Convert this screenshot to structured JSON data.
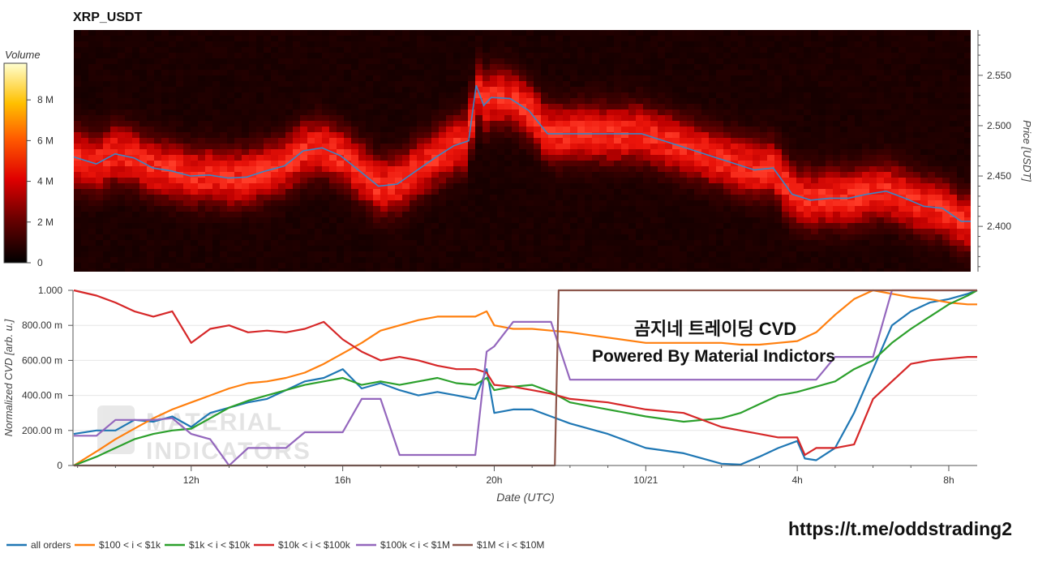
{
  "heatmap_title": "XRP_USDT",
  "colorbar": {
    "label": "Volume",
    "ticks": [
      "0",
      "2 M",
      "4 M",
      "6 M",
      "8 M"
    ],
    "tick_values": [
      0,
      2,
      4,
      6,
      8
    ],
    "max": 9.8
  },
  "price_axis": {
    "label": "Price [USDT]",
    "ticks": [
      "2.400",
      "2.450",
      "2.500",
      "2.550"
    ],
    "tick_values": [
      2.4,
      2.45,
      2.5,
      2.55
    ],
    "range": [
      2.355,
      2.595
    ]
  },
  "cvd_axis": {
    "label": "Normalized CVD [arb. u.]",
    "ticks": [
      "0",
      "200.00 m",
      "400.00 m",
      "600.00 m",
      "800.00 m",
      "1.000"
    ],
    "tick_values": [
      0,
      0.2,
      0.4,
      0.6,
      0.8,
      1.0
    ]
  },
  "x_axis": {
    "label": "Date (UTC)",
    "ticks": [
      "12h",
      "16h",
      "20h",
      "10/21",
      "4h",
      "8h"
    ],
    "tick_hours": [
      12,
      16,
      20,
      24,
      28,
      32
    ],
    "range_hours": [
      8.9,
      32.75
    ]
  },
  "overlay": {
    "line1": "곰지네 트레이딩 CVD",
    "line2": "Powered By Material Indictors"
  },
  "watermark": {
    "line1": "MATERIAL",
    "line2": "INDICATORS"
  },
  "footer_link": "https://t.me/oddstrading2",
  "legend": [
    {
      "label": "all orders",
      "color": "#1f77b4"
    },
    {
      "label": "$100 < i < $1k",
      "color": "#ff7f0e"
    },
    {
      "label": "$1k < i < $10k",
      "color": "#2ca02c"
    },
    {
      "label": "$10k < i < $100k",
      "color": "#d62728"
    },
    {
      "label": "$100k < i < $1M",
      "color": "#9467bd"
    },
    {
      "label": "$1M < i < $10M",
      "color": "#8c564b"
    }
  ],
  "chart_data": [
    {
      "type": "heatmap",
      "title": "XRP_USDT",
      "x_unit": "hours UTC from 10/20 00:00",
      "ylabel": "Price [USDT]",
      "colorbar_label": "Volume",
      "price_line": {
        "x": [
          8.9,
          9.5,
          10.0,
          10.5,
          11.0,
          11.5,
          12.0,
          12.5,
          13.0,
          13.5,
          14.0,
          14.5,
          15.0,
          15.5,
          16.0,
          16.5,
          17.0,
          17.5,
          18.0,
          18.5,
          19.0,
          19.4,
          19.6,
          19.8,
          20.0,
          20.5,
          21.0,
          21.5,
          22.0,
          23.0,
          24.0,
          25.0,
          26.0,
          27.0,
          27.5,
          28.0,
          28.5,
          29.0,
          29.5,
          30.0,
          30.5,
          31.0,
          31.5,
          32.0,
          32.5,
          32.75
        ],
        "y": [
          2.469,
          2.462,
          2.472,
          2.468,
          2.458,
          2.455,
          2.45,
          2.451,
          2.448,
          2.449,
          2.455,
          2.46,
          2.475,
          2.478,
          2.47,
          2.455,
          2.44,
          2.442,
          2.455,
          2.468,
          2.48,
          2.485,
          2.54,
          2.52,
          2.528,
          2.527,
          2.515,
          2.492,
          2.492,
          2.492,
          2.492,
          2.48,
          2.468,
          2.456,
          2.458,
          2.432,
          2.426,
          2.428,
          2.428,
          2.432,
          2.435,
          2.428,
          2.42,
          2.418,
          2.405,
          2.405
        ]
      }
    },
    {
      "type": "line",
      "xlabel": "Date (UTC)",
      "ylabel": "Normalized CVD [arb. u.]",
      "x_unit": "hours UTC from 10/20 00:00",
      "ylim": [
        0,
        1.0
      ],
      "series": [
        {
          "name": "all orders",
          "color": "#1f77b4",
          "x": [
            8.9,
            9.5,
            10.0,
            10.5,
            11.0,
            11.5,
            12.0,
            12.5,
            13.0,
            13.5,
            14.0,
            14.5,
            15.0,
            15.5,
            16.0,
            16.5,
            17.0,
            17.5,
            18.0,
            18.5,
            19.0,
            19.5,
            19.8,
            20.0,
            20.5,
            21.0,
            21.5,
            22.0,
            23.0,
            24.0,
            25.0,
            26.0,
            26.5,
            27.0,
            27.5,
            28.0,
            28.2,
            28.5,
            29.0,
            29.5,
            30.0,
            30.5,
            31.0,
            31.5,
            32.0,
            32.5,
            32.75
          ],
          "y": [
            0.18,
            0.2,
            0.2,
            0.26,
            0.25,
            0.28,
            0.22,
            0.3,
            0.33,
            0.36,
            0.38,
            0.43,
            0.48,
            0.5,
            0.55,
            0.44,
            0.47,
            0.43,
            0.4,
            0.42,
            0.4,
            0.38,
            0.55,
            0.3,
            0.32,
            0.32,
            0.28,
            0.24,
            0.18,
            0.1,
            0.07,
            0.01,
            0.005,
            0.05,
            0.1,
            0.14,
            0.04,
            0.03,
            0.1,
            0.3,
            0.55,
            0.8,
            0.88,
            0.93,
            0.95,
            0.98,
            1.0
          ]
        },
        {
          "name": "$100 < i < $1k",
          "color": "#ff7f0e",
          "x": [
            8.9,
            9.5,
            10.0,
            10.5,
            11.0,
            11.5,
            12.0,
            12.5,
            13.0,
            13.5,
            14.0,
            14.5,
            15.0,
            15.5,
            16.0,
            16.5,
            17.0,
            17.5,
            18.0,
            18.5,
            19.0,
            19.5,
            19.8,
            20.0,
            20.5,
            21.0,
            21.5,
            22.0,
            23.0,
            24.0,
            25.0,
            26.0,
            26.5,
            27.0,
            27.5,
            28.0,
            28.5,
            29.0,
            29.5,
            30.0,
            30.5,
            31.0,
            31.5,
            32.0,
            32.5,
            32.75
          ],
          "y": [
            0.0,
            0.08,
            0.15,
            0.21,
            0.27,
            0.32,
            0.36,
            0.4,
            0.44,
            0.47,
            0.48,
            0.5,
            0.53,
            0.58,
            0.64,
            0.7,
            0.77,
            0.8,
            0.83,
            0.85,
            0.85,
            0.85,
            0.88,
            0.8,
            0.78,
            0.78,
            0.77,
            0.76,
            0.73,
            0.7,
            0.7,
            0.7,
            0.69,
            0.69,
            0.7,
            0.71,
            0.76,
            0.86,
            0.95,
            1.0,
            0.98,
            0.96,
            0.95,
            0.93,
            0.92,
            0.92
          ]
        },
        {
          "name": "$1k < i < $10k",
          "color": "#2ca02c",
          "x": [
            8.9,
            9.5,
            10.0,
            10.5,
            11.0,
            11.5,
            12.0,
            12.5,
            13.0,
            13.5,
            14.0,
            14.5,
            15.0,
            15.5,
            16.0,
            16.5,
            17.0,
            17.5,
            18.0,
            18.5,
            19.0,
            19.5,
            19.8,
            20.0,
            20.5,
            21.0,
            21.5,
            22.0,
            23.0,
            24.0,
            25.0,
            26.0,
            26.5,
            27.0,
            27.5,
            28.0,
            28.5,
            29.0,
            29.5,
            30.0,
            30.5,
            31.0,
            31.5,
            32.0,
            32.5,
            32.75
          ],
          "y": [
            0.0,
            0.05,
            0.1,
            0.15,
            0.18,
            0.2,
            0.21,
            0.27,
            0.33,
            0.37,
            0.4,
            0.43,
            0.46,
            0.48,
            0.5,
            0.46,
            0.48,
            0.46,
            0.48,
            0.5,
            0.47,
            0.46,
            0.5,
            0.43,
            0.45,
            0.46,
            0.42,
            0.36,
            0.32,
            0.28,
            0.25,
            0.27,
            0.3,
            0.35,
            0.4,
            0.42,
            0.45,
            0.48,
            0.55,
            0.6,
            0.7,
            0.78,
            0.85,
            0.92,
            0.97,
            1.0
          ]
        },
        {
          "name": "$10k < i < $100k",
          "color": "#d62728",
          "x": [
            8.9,
            9.5,
            10.0,
            10.5,
            11.0,
            11.5,
            12.0,
            12.5,
            13.0,
            13.5,
            14.0,
            14.5,
            15.0,
            15.5,
            16.0,
            16.5,
            17.0,
            17.5,
            18.0,
            18.5,
            19.0,
            19.5,
            19.8,
            20.0,
            20.5,
            21.0,
            21.5,
            22.0,
            23.0,
            24.0,
            25.0,
            26.0,
            26.5,
            27.0,
            27.5,
            28.0,
            28.2,
            28.5,
            29.0,
            29.5,
            30.0,
            30.5,
            31.0,
            31.5,
            32.0,
            32.5,
            32.75
          ],
          "y": [
            1.0,
            0.97,
            0.93,
            0.88,
            0.85,
            0.88,
            0.7,
            0.78,
            0.8,
            0.76,
            0.77,
            0.76,
            0.78,
            0.82,
            0.72,
            0.65,
            0.6,
            0.62,
            0.6,
            0.57,
            0.55,
            0.55,
            0.53,
            0.46,
            0.45,
            0.43,
            0.41,
            0.38,
            0.36,
            0.32,
            0.3,
            0.22,
            0.2,
            0.18,
            0.16,
            0.16,
            0.06,
            0.1,
            0.1,
            0.12,
            0.38,
            0.48,
            0.58,
            0.6,
            0.61,
            0.62,
            0.62
          ]
        },
        {
          "name": "$100k < i < $1M",
          "color": "#9467bd",
          "x": [
            8.9,
            9.5,
            10.0,
            10.5,
            11.0,
            11.5,
            12.0,
            12.5,
            13.0,
            13.5,
            14.0,
            14.5,
            15.0,
            15.5,
            16.0,
            16.5,
            17.0,
            17.5,
            18.0,
            18.5,
            19.0,
            19.5,
            19.8,
            20.0,
            20.5,
            21.0,
            21.5,
            22.0,
            23.0,
            24.0,
            25.0,
            26.0,
            26.5,
            27.0,
            27.5,
            28.0,
            28.5,
            29.0,
            29.5,
            30.0,
            30.5,
            31.0,
            31.5,
            32.0,
            32.5,
            32.75
          ],
          "y": [
            0.17,
            0.17,
            0.26,
            0.26,
            0.26,
            0.27,
            0.18,
            0.15,
            0.0,
            0.1,
            0.1,
            0.1,
            0.19,
            0.19,
            0.19,
            0.38,
            0.38,
            0.06,
            0.06,
            0.06,
            0.06,
            0.06,
            0.65,
            0.68,
            0.82,
            0.82,
            0.82,
            0.49,
            0.49,
            0.49,
            0.49,
            0.49,
            0.49,
            0.49,
            0.49,
            0.49,
            0.49,
            0.62,
            0.62,
            0.62,
            1.0,
            1.0,
            1.0,
            1.0,
            1.0,
            1.0
          ]
        },
        {
          "name": "$1M < i < $10M",
          "color": "#8c564b",
          "x": [
            8.9,
            21.6,
            21.7,
            32.75
          ],
          "y": [
            0.0,
            0.0,
            1.0,
            1.0
          ]
        }
      ]
    }
  ]
}
